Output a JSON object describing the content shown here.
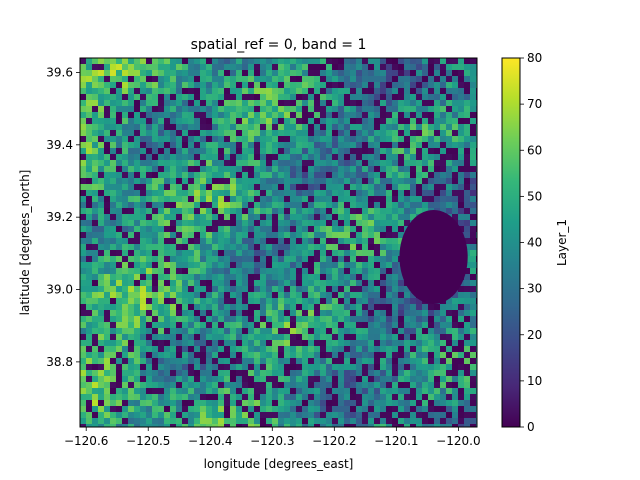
{
  "chart_data": {
    "type": "heatmap",
    "title": "spatial_ref = 0, band = 1",
    "xlabel": "longitude [degrees_east]",
    "ylabel": "latitude [degrees_north]",
    "xlim": [
      -120.61,
      -119.97
    ],
    "ylim": [
      38.62,
      39.64
    ],
    "x_ticks": [
      {
        "value": -120.6,
        "label": "−120.6"
      },
      {
        "value": -120.5,
        "label": "−120.5"
      },
      {
        "value": -120.4,
        "label": "−120.4"
      },
      {
        "value": -120.3,
        "label": "−120.3"
      },
      {
        "value": -120.2,
        "label": "−120.2"
      },
      {
        "value": -120.1,
        "label": "−120.1"
      },
      {
        "value": -120.0,
        "label": "−120.0"
      }
    ],
    "y_ticks": [
      {
        "value": 38.8,
        "label": "38.8"
      },
      {
        "value": 39.0,
        "label": "39.0"
      },
      {
        "value": 39.2,
        "label": "39.2"
      },
      {
        "value": 39.4,
        "label": "39.4"
      },
      {
        "value": 39.6,
        "label": "39.6"
      }
    ],
    "colorbar": {
      "label": "Layer_1",
      "colormap": "viridis",
      "range": [
        0,
        80
      ],
      "ticks": [
        {
          "value": 0,
          "label": "0"
        },
        {
          "value": 10,
          "label": "10"
        },
        {
          "value": 20,
          "label": "20"
        },
        {
          "value": 30,
          "label": "30"
        },
        {
          "value": 40,
          "label": "40"
        },
        {
          "value": 50,
          "label": "50"
        },
        {
          "value": 60,
          "label": "60"
        },
        {
          "value": 70,
          "label": "70"
        },
        {
          "value": 80,
          "label": "80"
        }
      ]
    },
    "features": [
      {
        "kind": "lake",
        "value": 0,
        "center": [
          -120.04,
          39.09
        ],
        "radius_deg": [
          0.055,
          0.13
        ]
      }
    ],
    "grid": false,
    "legend": "none"
  },
  "colors": {
    "viridis": [
      "#440154",
      "#482878",
      "#3e4989",
      "#31688e",
      "#26828e",
      "#1f9e89",
      "#35b779",
      "#6ece58",
      "#b5de2b",
      "#fde725"
    ],
    "axis": "#000000",
    "background": "#ffffff"
  }
}
